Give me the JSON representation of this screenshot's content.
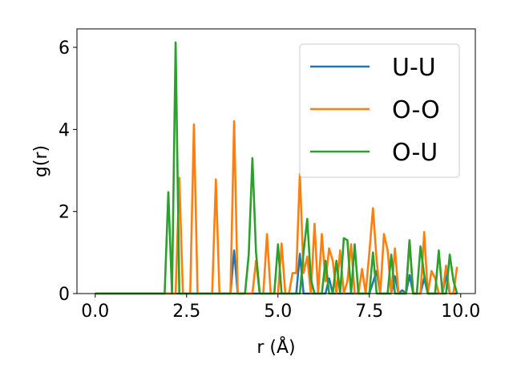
{
  "chart_data": {
    "type": "line",
    "title": "",
    "xlabel": "r (Å)",
    "ylabel": "g(r)",
    "xlim": [
      -0.5,
      10.4
    ],
    "ylim": [
      0,
      6.45
    ],
    "x_ticks": [
      "0.0",
      "2.5",
      "5.0",
      "7.5",
      "10.0"
    ],
    "x_tick_values": [
      0,
      2.5,
      5,
      7.5,
      10
    ],
    "y_ticks": [
      "0",
      "2",
      "4",
      "6"
    ],
    "y_tick_values": [
      0,
      2,
      4,
      6
    ],
    "grid": false,
    "legend_position": "top-right",
    "colors": {
      "U-U": "#1f77b4",
      "O-O": "#ff7f0e",
      "O-U": "#2ca02c"
    },
    "series": [
      {
        "name": "U-U",
        "x": [
          0.0,
          3.7,
          3.8,
          3.9,
          5.5,
          5.6,
          5.7,
          6.3,
          6.4,
          6.5,
          7.5,
          7.7,
          7.8,
          8.1,
          8.2,
          8.3,
          8.4,
          8.5,
          8.6,
          8.7,
          8.9,
          9.0,
          9.1,
          9.5,
          9.6,
          9.7,
          9.9
        ],
        "y": [
          0.0,
          0.0,
          1.05,
          0.0,
          0.0,
          0.97,
          0.0,
          0.0,
          0.37,
          0.0,
          0.0,
          0.55,
          0.0,
          0.0,
          0.42,
          0.0,
          0.08,
          0.0,
          0.45,
          0.0,
          0.0,
          0.38,
          0.0,
          0.0,
          0.45,
          0.0,
          0.0
        ]
      },
      {
        "name": "O-O",
        "x": [
          0.0,
          2.2,
          2.3,
          2.4,
          2.6,
          2.7,
          2.8,
          3.2,
          3.3,
          3.4,
          3.7,
          3.8,
          3.9,
          4.3,
          4.4,
          4.5,
          4.6,
          4.7,
          4.8,
          5.0,
          5.1,
          5.2,
          5.3,
          5.4,
          5.5,
          5.6,
          5.7,
          5.8,
          5.9,
          6.0,
          6.1,
          6.2,
          6.3,
          6.4,
          6.5,
          6.6,
          6.7,
          6.8,
          6.9,
          7.0,
          7.1,
          7.2,
          7.3,
          7.4,
          7.5,
          7.6,
          7.7,
          7.8,
          7.9,
          8.0,
          8.1,
          8.2,
          8.3,
          8.4,
          8.5,
          8.6,
          8.7,
          8.8,
          8.9,
          9.0,
          9.1,
          9.2,
          9.3,
          9.4,
          9.5,
          9.6,
          9.7,
          9.8,
          9.9
        ],
        "y": [
          0.0,
          0.0,
          2.82,
          0.0,
          0.0,
          4.12,
          0.0,
          0.0,
          2.78,
          0.0,
          0.0,
          4.2,
          0.0,
          0.0,
          0.8,
          0.0,
          0.0,
          1.45,
          0.0,
          0.0,
          1.22,
          0.0,
          0.0,
          0.5,
          0.5,
          2.92,
          0.5,
          0.9,
          0.0,
          1.7,
          0.0,
          1.45,
          0.3,
          1.1,
          0.8,
          0.0,
          1.05,
          0.0,
          0.3,
          1.2,
          0.0,
          0.0,
          0.6,
          0.0,
          1.0,
          2.08,
          0.8,
          0.0,
          1.45,
          1.05,
          0.0,
          1.1,
          0.0,
          0.0,
          0.0,
          1.3,
          0.0,
          0.0,
          0.0,
          1.5,
          0.0,
          0.55,
          0.38,
          0.0,
          0.0,
          0.68,
          0.0,
          0.0,
          0.65
        ]
      },
      {
        "name": "O-U",
        "x": [
          0.0,
          1.9,
          2.0,
          2.1,
          2.2,
          2.3,
          4.0,
          4.1,
          4.2,
          4.3,
          4.4,
          4.5,
          4.9,
          5.0,
          5.1,
          5.2,
          5.6,
          5.7,
          5.8,
          5.9,
          6.0,
          6.1,
          6.2,
          6.3,
          6.4,
          6.5,
          6.6,
          6.7,
          6.8,
          6.9,
          7.0,
          7.1,
          7.2,
          7.3,
          7.4,
          7.5,
          7.6,
          7.7,
          7.8,
          7.9,
          8.0,
          8.1,
          8.2,
          8.3,
          8.4,
          8.5,
          8.6,
          8.7,
          8.8,
          8.9,
          9.0,
          9.1,
          9.2,
          9.3,
          9.4,
          9.5,
          9.6,
          9.7,
          9.8,
          9.9
        ],
        "y": [
          0.0,
          0.0,
          2.47,
          0.0,
          6.12,
          0.0,
          0.0,
          0.0,
          0.95,
          3.3,
          1.0,
          0.0,
          0.0,
          1.2,
          0.0,
          0.0,
          0.0,
          1.0,
          1.82,
          0.35,
          0.0,
          0.0,
          0.0,
          0.8,
          0.0,
          0.0,
          0.8,
          0.0,
          1.35,
          1.3,
          0.0,
          1.2,
          0.0,
          0.0,
          0.0,
          0.0,
          1.0,
          0.0,
          0.0,
          0.0,
          0.0,
          0.95,
          0.0,
          0.0,
          0.0,
          0.0,
          1.3,
          0.0,
          0.0,
          1.15,
          0.45,
          0.0,
          0.0,
          0.0,
          1.05,
          0.0,
          0.0,
          0.95,
          0.32,
          0.0
        ]
      }
    ]
  }
}
